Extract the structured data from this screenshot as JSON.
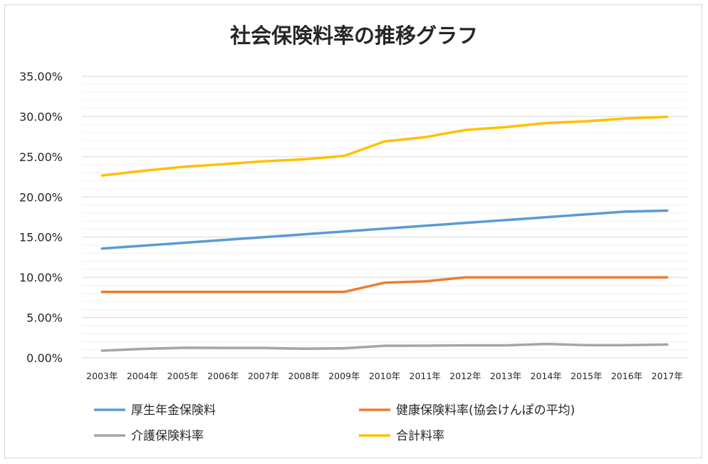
{
  "chart_data": {
    "type": "line",
    "title": "社会保険料率の推移グラフ",
    "xlabel": "",
    "ylabel": "",
    "x": [
      "2003年",
      "2004年",
      "2005年",
      "2006年",
      "2007年",
      "2008年",
      "2009年",
      "2010年",
      "2011年",
      "2012年",
      "2013年",
      "2014年",
      "2015年",
      "2016年",
      "2017年"
    ],
    "ylim": [
      0,
      35
    ],
    "y_ticks": [
      "0.00%",
      "5.00%",
      "10.00%",
      "15.00%",
      "20.00%",
      "25.00%",
      "30.00%",
      "35.00%"
    ],
    "grid": true,
    "legend_position": "bottom",
    "series": [
      {
        "name": "厚生年金保険料",
        "color": "#5b9bd5",
        "values": [
          13.58,
          13.93,
          14.29,
          14.64,
          15.0,
          15.35,
          15.7,
          16.06,
          16.41,
          16.77,
          17.12,
          17.47,
          17.83,
          18.18,
          18.3
        ]
      },
      {
        "name": "健康保険料率(協会けんぽの平均)",
        "color": "#ed7d31",
        "values": [
          8.2,
          8.2,
          8.2,
          8.2,
          8.2,
          8.2,
          8.2,
          9.34,
          9.5,
          10.0,
          10.0,
          10.0,
          10.0,
          10.0,
          10.0
        ]
      },
      {
        "name": "介護保険料率",
        "color": "#a5a5a5",
        "values": [
          0.89,
          1.11,
          1.25,
          1.23,
          1.23,
          1.13,
          1.19,
          1.5,
          1.51,
          1.55,
          1.55,
          1.72,
          1.58,
          1.58,
          1.65
        ]
      },
      {
        "name": "合計料率",
        "color": "#ffc000",
        "values": [
          22.67,
          23.24,
          23.74,
          24.07,
          24.43,
          24.68,
          25.09,
          26.9,
          27.42,
          28.32,
          28.67,
          29.19,
          29.41,
          29.76,
          29.95
        ]
      }
    ]
  }
}
